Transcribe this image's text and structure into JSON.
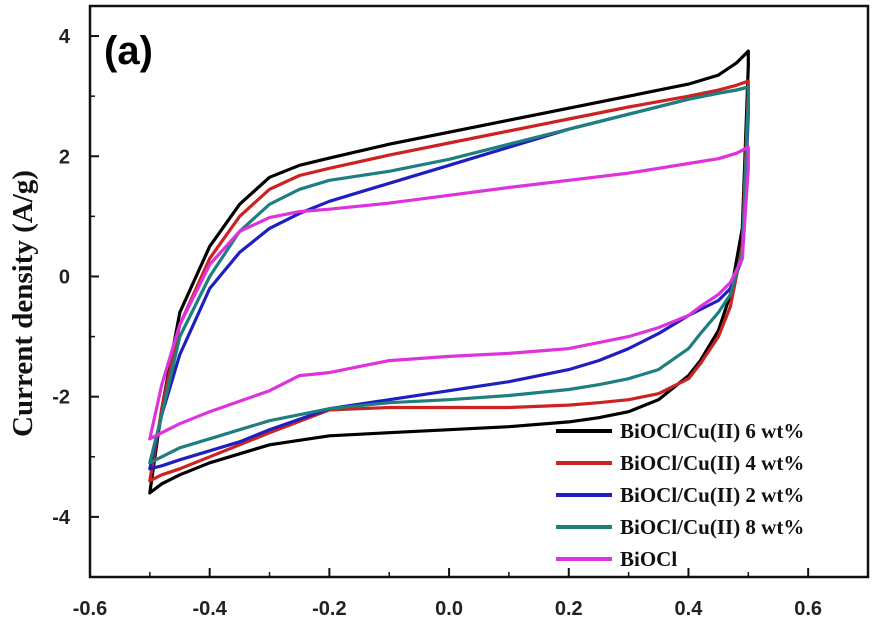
{
  "chart_data": {
    "type": "line",
    "panel_label": "(a)",
    "xlabel": "",
    "ylabel": "Current density (A/g)",
    "xlim": [
      -0.6,
      0.7
    ],
    "ylim": [
      -5,
      4.5
    ],
    "xticks": [
      -0.6,
      -0.4,
      -0.2,
      0.0,
      0.2,
      0.4,
      0.6
    ],
    "xtick_labels": [
      "-0.6",
      "-0.4",
      "-0.2",
      "0.0",
      "0.2",
      "0.4",
      "0.6"
    ],
    "yticks": [
      -4,
      -2,
      0,
      2,
      4
    ],
    "ytick_labels": [
      "-4",
      "-2",
      "0",
      "2",
      "4"
    ],
    "grid": false,
    "legend_position": "bottom-right",
    "series": [
      {
        "name": "BiOCl/Cu(II) 6 wt%",
        "color": "#000000",
        "x": [
          -0.5,
          -0.48,
          -0.45,
          -0.4,
          -0.35,
          -0.3,
          -0.25,
          -0.2,
          -0.1,
          0.0,
          0.1,
          0.2,
          0.3,
          0.4,
          0.45,
          0.48,
          0.5,
          0.5,
          0.49,
          0.47,
          0.45,
          0.42,
          0.4,
          0.35,
          0.3,
          0.25,
          0.2,
          0.1,
          0.0,
          -0.1,
          -0.2,
          -0.3,
          -0.35,
          -0.4,
          -0.45,
          -0.48,
          -0.5
        ],
        "y": [
          -3.6,
          -2.2,
          -0.6,
          0.5,
          1.2,
          1.65,
          1.85,
          1.97,
          2.2,
          2.4,
          2.6,
          2.8,
          3.0,
          3.2,
          3.35,
          3.55,
          3.75,
          3.5,
          0.8,
          -0.3,
          -0.9,
          -1.4,
          -1.65,
          -2.05,
          -2.25,
          -2.35,
          -2.42,
          -2.5,
          -2.55,
          -2.6,
          -2.65,
          -2.8,
          -2.95,
          -3.1,
          -3.3,
          -3.45,
          -3.6
        ]
      },
      {
        "name": "BiOCl/Cu(II) 4 wt%",
        "color": "#cc2222",
        "x": [
          -0.5,
          -0.48,
          -0.45,
          -0.4,
          -0.35,
          -0.3,
          -0.25,
          -0.2,
          -0.1,
          0.0,
          0.1,
          0.2,
          0.3,
          0.4,
          0.45,
          0.48,
          0.5,
          0.5,
          0.49,
          0.47,
          0.45,
          0.42,
          0.4,
          0.35,
          0.3,
          0.25,
          0.2,
          0.1,
          0.0,
          -0.1,
          -0.2,
          -0.3,
          -0.35,
          -0.4,
          -0.45,
          -0.48,
          -0.5
        ],
        "y": [
          -3.4,
          -2.2,
          -0.8,
          0.3,
          1.0,
          1.45,
          1.68,
          1.8,
          2.02,
          2.22,
          2.42,
          2.62,
          2.82,
          3.0,
          3.1,
          3.18,
          3.25,
          3.1,
          0.5,
          -0.5,
          -1.0,
          -1.45,
          -1.7,
          -1.95,
          -2.05,
          -2.1,
          -2.14,
          -2.18,
          -2.18,
          -2.18,
          -2.22,
          -2.6,
          -2.8,
          -3.0,
          -3.2,
          -3.3,
          -3.4
        ]
      },
      {
        "name": "BiOCl/Cu(II) 2 wt%",
        "color": "#1f1fbf",
        "x": [
          -0.5,
          -0.48,
          -0.45,
          -0.4,
          -0.35,
          -0.3,
          -0.25,
          -0.2,
          -0.1,
          0.0,
          0.1,
          0.2,
          0.3,
          0.4,
          0.45,
          0.48,
          0.5,
          0.5,
          0.49,
          0.47,
          0.45,
          0.42,
          0.4,
          0.35,
          0.3,
          0.25,
          0.2,
          0.1,
          0.0,
          -0.1,
          -0.2,
          -0.3,
          -0.35,
          -0.4,
          -0.45,
          -0.48,
          -0.5
        ],
        "y": [
          -3.2,
          -2.3,
          -1.3,
          -0.2,
          0.4,
          0.8,
          1.05,
          1.25,
          1.55,
          1.85,
          2.15,
          2.45,
          2.7,
          2.95,
          3.05,
          3.1,
          3.15,
          2.7,
          0.3,
          -0.2,
          -0.4,
          -0.55,
          -0.65,
          -0.95,
          -1.2,
          -1.4,
          -1.55,
          -1.75,
          -1.9,
          -2.05,
          -2.2,
          -2.55,
          -2.75,
          -2.9,
          -3.05,
          -3.15,
          -3.2
        ]
      },
      {
        "name": "BiOCl/Cu(II) 8 wt%",
        "color": "#1f7f7f",
        "x": [
          -0.5,
          -0.48,
          -0.45,
          -0.4,
          -0.35,
          -0.3,
          -0.25,
          -0.2,
          -0.1,
          0.0,
          0.1,
          0.2,
          0.3,
          0.4,
          0.45,
          0.48,
          0.5,
          0.5,
          0.49,
          0.47,
          0.45,
          0.42,
          0.4,
          0.35,
          0.3,
          0.25,
          0.2,
          0.1,
          0.0,
          -0.1,
          -0.2,
          -0.3,
          -0.35,
          -0.4,
          -0.45,
          -0.48,
          -0.5
        ],
        "y": [
          -3.1,
          -2.3,
          -1.0,
          0.0,
          0.75,
          1.2,
          1.45,
          1.6,
          1.75,
          1.95,
          2.2,
          2.45,
          2.7,
          2.95,
          3.05,
          3.1,
          3.15,
          2.9,
          0.4,
          -0.3,
          -0.6,
          -0.95,
          -1.2,
          -1.55,
          -1.7,
          -1.8,
          -1.88,
          -1.98,
          -2.05,
          -2.1,
          -2.2,
          -2.4,
          -2.55,
          -2.7,
          -2.85,
          -3.0,
          -3.1
        ]
      },
      {
        "name": "BiOCl",
        "color": "#dd33dd",
        "x": [
          -0.5,
          -0.48,
          -0.45,
          -0.4,
          -0.35,
          -0.3,
          -0.25,
          -0.2,
          -0.1,
          0.0,
          0.1,
          0.2,
          0.3,
          0.4,
          0.45,
          0.48,
          0.5,
          0.5,
          0.49,
          0.47,
          0.45,
          0.42,
          0.4,
          0.35,
          0.3,
          0.25,
          0.2,
          0.1,
          0.0,
          -0.1,
          -0.2,
          -0.25,
          -0.3,
          -0.4,
          -0.45,
          -0.48,
          -0.5
        ],
        "y": [
          -2.7,
          -1.8,
          -0.8,
          0.2,
          0.75,
          0.98,
          1.08,
          1.12,
          1.22,
          1.35,
          1.48,
          1.6,
          1.72,
          1.88,
          1.96,
          2.05,
          2.15,
          1.8,
          0.3,
          -0.1,
          -0.3,
          -0.5,
          -0.65,
          -0.85,
          -1.0,
          -1.1,
          -1.2,
          -1.28,
          -1.33,
          -1.4,
          -1.6,
          -1.65,
          -1.9,
          -2.25,
          -2.45,
          -2.6,
          -2.7
        ]
      }
    ]
  }
}
